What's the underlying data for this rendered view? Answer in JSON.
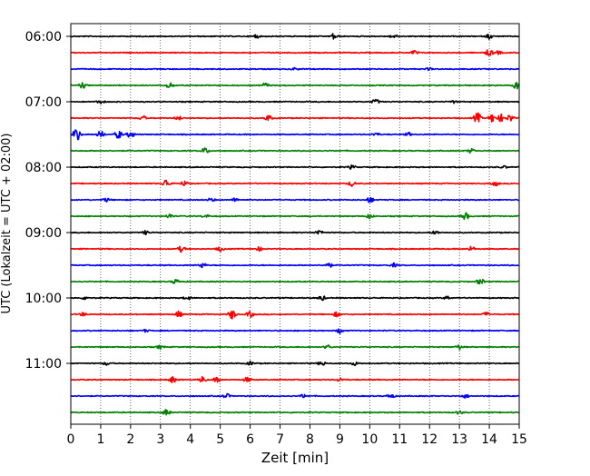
{
  "chart_data": {
    "type": "line",
    "title": "",
    "xlabel": "Zeit  [min]",
    "ylabel": "UTC (Lokalzeit = UTC + 02:00)",
    "xlim": [
      0,
      15
    ],
    "x_ticks": [
      "0",
      "1",
      "2",
      "3",
      "4",
      "5",
      "6",
      "7",
      "8",
      "9",
      "10",
      "11",
      "12",
      "13",
      "14",
      "15"
    ],
    "y_ticks": [
      "06:00",
      "07:00",
      "08:00",
      "09:00",
      "10:00",
      "11:00"
    ],
    "y_tick_traces": [
      0,
      4,
      8,
      12,
      16,
      20
    ],
    "trace_interval_minutes": 15,
    "grid": "vertical dotted",
    "colors": [
      "#000000",
      "#ff0000",
      "#0000ff",
      "#008000"
    ],
    "trace_times": [
      "06:00",
      "06:15",
      "06:30",
      "06:45",
      "07:00",
      "07:15",
      "07:30",
      "07:45",
      "08:00",
      "08:15",
      "08:30",
      "08:45",
      "09:00",
      "09:15",
      "09:30",
      "09:45",
      "10:00",
      "10:15",
      "10:30",
      "10:45",
      "11:00",
      "11:15",
      "11:30",
      "11:45"
    ],
    "events": [
      [
        [
          6.2,
          0.3
        ],
        [
          8.8,
          0.5
        ],
        [
          10.8,
          0.3
        ],
        [
          14.0,
          0.4
        ]
      ],
      [
        [
          11.5,
          0.4
        ],
        [
          14.0,
          0.6
        ],
        [
          14.3,
          0.3
        ]
      ],
      [
        [
          7.5,
          0.2
        ],
        [
          12.0,
          0.2
        ]
      ],
      [
        [
          0.4,
          0.5
        ],
        [
          3.3,
          0.5
        ],
        [
          6.5,
          0.4
        ],
        [
          14.9,
          0.6
        ]
      ],
      [
        [
          1.0,
          0.3
        ],
        [
          10.2,
          0.4
        ],
        [
          12.8,
          0.2
        ]
      ],
      [
        [
          2.4,
          0.4
        ],
        [
          3.6,
          0.3
        ],
        [
          6.6,
          0.5
        ],
        [
          13.6,
          0.9
        ],
        [
          14.1,
          0.7
        ],
        [
          14.4,
          0.6
        ],
        [
          14.7,
          0.6
        ]
      ],
      [
        [
          0.2,
          1.1
        ],
        [
          1.0,
          0.6
        ],
        [
          1.6,
          0.7
        ],
        [
          2.0,
          0.6
        ],
        [
          10.2,
          0.3
        ],
        [
          11.3,
          0.3
        ]
      ],
      [
        [
          4.5,
          0.5
        ],
        [
          13.4,
          0.4
        ]
      ],
      [
        [
          9.4,
          0.3
        ],
        [
          14.5,
          0.2
        ]
      ],
      [
        [
          3.2,
          0.8
        ],
        [
          3.8,
          0.4
        ],
        [
          9.4,
          0.4
        ],
        [
          14.2,
          0.4
        ]
      ],
      [
        [
          1.2,
          0.3
        ],
        [
          4.7,
          0.3
        ],
        [
          5.5,
          0.3
        ],
        [
          10.0,
          0.5
        ]
      ],
      [
        [
          3.3,
          0.4
        ],
        [
          4.5,
          0.3
        ],
        [
          10.0,
          0.4
        ],
        [
          13.2,
          0.6
        ]
      ],
      [
        [
          2.5,
          0.3
        ],
        [
          8.3,
          0.4
        ],
        [
          12.2,
          0.3
        ]
      ],
      [
        [
          3.7,
          0.5
        ],
        [
          5.0,
          0.4
        ],
        [
          6.3,
          0.3
        ],
        [
          13.4,
          0.4
        ]
      ],
      [
        [
          4.4,
          0.4
        ],
        [
          8.6,
          0.5
        ],
        [
          10.8,
          0.3
        ]
      ],
      [
        [
          3.5,
          0.4
        ],
        [
          13.7,
          0.5
        ]
      ],
      [
        [
          0.5,
          0.3
        ],
        [
          3.9,
          0.3
        ],
        [
          8.4,
          0.4
        ],
        [
          12.6,
          0.3
        ]
      ],
      [
        [
          0.4,
          0.3
        ],
        [
          3.6,
          0.5
        ],
        [
          5.4,
          0.8
        ],
        [
          6.0,
          0.5
        ],
        [
          8.9,
          0.4
        ],
        [
          13.9,
          0.3
        ]
      ],
      [
        [
          2.5,
          0.2
        ],
        [
          9.0,
          0.4
        ]
      ],
      [
        [
          3.0,
          0.3
        ],
        [
          8.6,
          0.3
        ],
        [
          13.0,
          0.4
        ]
      ],
      [
        [
          1.2,
          0.3
        ],
        [
          6.0,
          0.3
        ],
        [
          8.4,
          0.4
        ],
        [
          9.5,
          0.3
        ]
      ],
      [
        [
          3.4,
          0.5
        ],
        [
          4.4,
          0.5
        ],
        [
          4.9,
          0.4
        ],
        [
          5.9,
          0.4
        ],
        [
          9.0,
          0.3
        ]
      ],
      [
        [
          5.2,
          0.4
        ],
        [
          7.8,
          0.3
        ],
        [
          10.7,
          0.4
        ],
        [
          13.2,
          0.3
        ]
      ],
      [
        [
          3.2,
          0.5
        ],
        [
          13.0,
          0.3
        ]
      ]
    ]
  }
}
